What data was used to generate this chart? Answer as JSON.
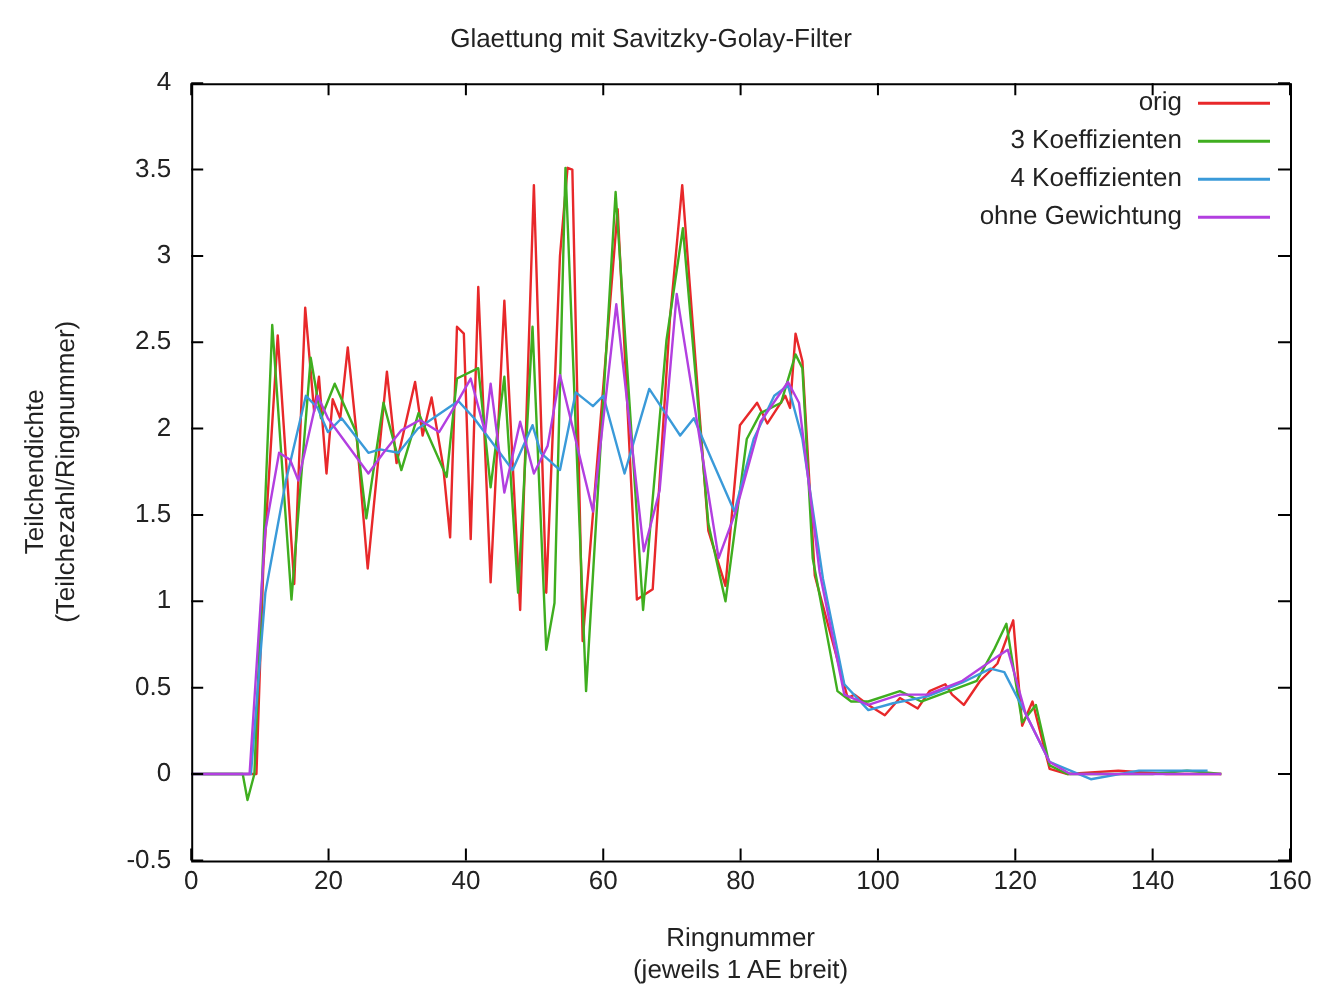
{
  "chart_data": {
    "type": "line",
    "title": "Glaettung mit Savitzky-Golay-Filter",
    "xlabel": "Ringnummer\n(jeweils 1 AE breit)",
    "ylabel": "Teilchendichte\n(Teilchezahl/Ringnummer)",
    "xlim": [
      0,
      160
    ],
    "xticks": [
      0,
      20,
      40,
      60,
      80,
      100,
      120,
      140,
      160
    ],
    "ylim": [
      -0.5,
      4
    ],
    "yticks": [
      -0.5,
      0,
      0.5,
      1,
      1.5,
      2,
      2.5,
      3,
      3.5,
      4
    ],
    "grid": false,
    "legend": "top right",
    "marker": "none",
    "line_style": "solid",
    "series": [
      {
        "name": "orig",
        "color": "#e8282a",
        "x": [
          0,
          9.5,
          10.5,
          12.6,
          15,
          16.6,
          17.9,
          18.6,
          19.7,
          20.6,
          21.7,
          22.8,
          24,
          25.7,
          28.5,
          29.9,
          32.6,
          33.7,
          35,
          36.7,
          37.7,
          38.7,
          39.7,
          40.7,
          41.8,
          43.6,
          45.6,
          47.9,
          49.9,
          51.7,
          53.7,
          54.8,
          55.5,
          57,
          62.1,
          64.9,
          67.2,
          69.7,
          71.5,
          75.3,
          77.8,
          79.9,
          82.4,
          83.9,
          86.5,
          87.2,
          88,
          89,
          90.8,
          95.6,
          96.6,
          98.6,
          101,
          103.2,
          105.8,
          107.5,
          109.8,
          110.8,
          112.5,
          114.9,
          117.4,
          119.7,
          121,
          122.5,
          125,
          127.6,
          135,
          142,
          150
        ],
        "values": [
          0,
          0,
          1.2,
          2.54,
          1.1,
          2.7,
          2.1,
          2.3,
          1.74,
          2.17,
          2.06,
          2.47,
          2.0,
          1.19,
          2.33,
          1.8,
          2.27,
          1.96,
          2.18,
          1.78,
          1.37,
          2.59,
          2.55,
          1.36,
          2.82,
          1.11,
          2.74,
          0.95,
          3.41,
          1.05,
          3.0,
          3.51,
          3.5,
          0.77,
          3.27,
          1.01,
          1.07,
          2.63,
          3.41,
          1.41,
          1.09,
          2.02,
          2.15,
          2.03,
          2.19,
          2.12,
          2.55,
          2.39,
          1.15,
          0.44,
          0.46,
          0.4,
          0.34,
          0.44,
          0.38,
          0.48,
          0.52,
          0.46,
          0.4,
          0.54,
          0.64,
          0.89,
          0.28,
          0.42,
          0.03,
          0,
          0.02,
          0,
          0
        ]
      },
      {
        "name": "3 Koeffizienten",
        "color": "#3fae1f",
        "x": [
          0,
          7.5,
          8.2,
          9.2,
          11.8,
          14.6,
          17.4,
          18.9,
          20.9,
          24,
          25.5,
          28,
          30.6,
          33.1,
          37.2,
          38.7,
          41.8,
          43.6,
          45.6,
          47.6,
          49.7,
          51.7,
          52.9,
          54.5,
          57.5,
          61.8,
          65.8,
          69.2,
          71.6,
          75.3,
          77.8,
          80.9,
          82.9,
          85.9,
          88,
          89,
          90.5,
          94.1,
          96.1,
          98.6,
          103.2,
          106.3,
          110.4,
          114.4,
          116.9,
          118.7,
          121,
          123,
          125,
          127.6,
          140,
          145,
          150
        ],
        "values": [
          0,
          0,
          -0.15,
          0,
          2.6,
          1.01,
          2.41,
          2.06,
          2.26,
          1.98,
          1.48,
          2.15,
          1.76,
          2.09,
          1.72,
          2.29,
          2.35,
          1.66,
          2.3,
          1.05,
          2.59,
          0.72,
          0.99,
          3.51,
          0.48,
          3.37,
          0.95,
          2.51,
          3.16,
          1.45,
          1.0,
          1.94,
          2.09,
          2.15,
          2.43,
          2.35,
          1.25,
          0.48,
          0.42,
          0.42,
          0.48,
          0.42,
          0.48,
          0.54,
          0.72,
          0.87,
          0.3,
          0.4,
          0.05,
          0,
          0,
          0.02,
          0
        ]
      },
      {
        "name": "4 Koeffizienten",
        "color": "#3a9ad9",
        "x": [
          0,
          8.7,
          10.8,
          13.8,
          16.7,
          18.4,
          19.9,
          21.9,
          25.8,
          27.5,
          30.2,
          33,
          35.6,
          38.9,
          41.2,
          46.8,
          49.7,
          50.9,
          53.7,
          56,
          58.5,
          60,
          63.1,
          66.7,
          68.7,
          71.2,
          73.2,
          75.8,
          79.1,
          81.9,
          84.9,
          86.9,
          89,
          92,
          95.1,
          98.6,
          102.2,
          107.2,
          112.3,
          116.4,
          118.4,
          121.5,
          125,
          131,
          138,
          148
        ],
        "values": [
          0,
          0,
          1.05,
          1.7,
          2.19,
          2.12,
          1.98,
          2.06,
          1.86,
          1.88,
          1.86,
          2.0,
          2.07,
          2.16,
          2.06,
          1.76,
          2.02,
          1.86,
          1.76,
          2.21,
          2.13,
          2.19,
          1.74,
          2.23,
          2.11,
          1.96,
          2.06,
          1.82,
          1.52,
          1.94,
          2.19,
          2.25,
          1.94,
          1.13,
          0.52,
          0.37,
          0.41,
          0.45,
          0.53,
          0.61,
          0.59,
          0.35,
          0.07,
          -0.03,
          0.02,
          0.02
        ]
      },
      {
        "name": "ohne Gewichtung",
        "color": "#b23fe0",
        "x": [
          0,
          8.5,
          10.8,
          12.8,
          14.4,
          15.6,
          18.4,
          19.9,
          25.8,
          28,
          30.6,
          33.3,
          36.1,
          38.7,
          40.7,
          42.8,
          43.6,
          45.6,
          47.9,
          49.9,
          51.9,
          53.7,
          58.5,
          61.9,
          65.9,
          68.2,
          70.7,
          76.8,
          79.3,
          82.9,
          86.9,
          88.5,
          91.5,
          95.1,
          98.6,
          103.2,
          107.2,
          112.3,
          117.4,
          118.9,
          121.5,
          125,
          128,
          150
        ],
        "values": [
          0,
          0,
          1.41,
          1.86,
          1.82,
          1.7,
          2.19,
          2.06,
          1.74,
          1.86,
          1.99,
          2.05,
          1.98,
          2.15,
          2.29,
          1.98,
          2.26,
          1.63,
          2.04,
          1.74,
          1.9,
          2.31,
          1.52,
          2.72,
          1.29,
          1.64,
          2.78,
          1.25,
          1.52,
          2.04,
          2.27,
          2.15,
          1.17,
          0.46,
          0.4,
          0.46,
          0.46,
          0.54,
          0.68,
          0.72,
          0.35,
          0.07,
          0,
          0
        ]
      }
    ]
  }
}
